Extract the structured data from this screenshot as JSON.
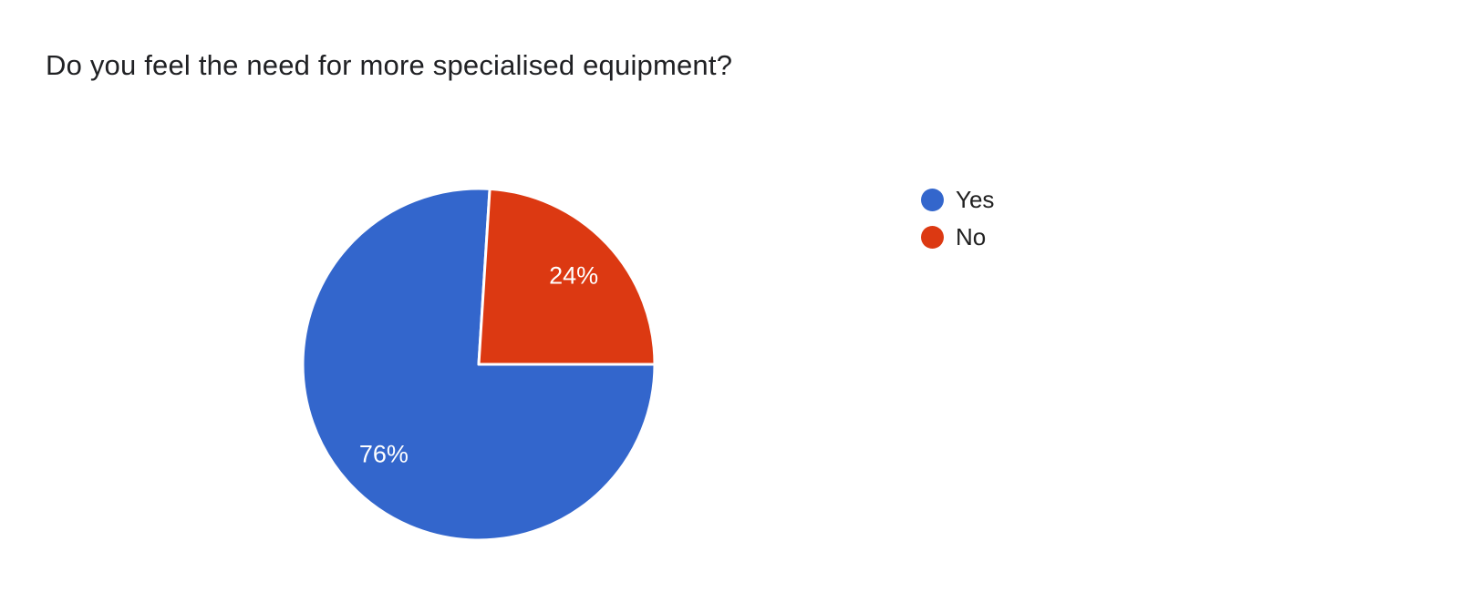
{
  "chart_data": {
    "type": "pie",
    "title": "Do you feel the need for more specialised equipment?",
    "slices": [
      {
        "label": "Yes",
        "value": 76,
        "display": "76%",
        "color": "#3366cc"
      },
      {
        "label": "No",
        "value": 24,
        "display": "24%",
        "color": "#dc3912"
      }
    ],
    "total": 100,
    "start_angle_deg": 90,
    "direction": "clockwise",
    "legend_position": "right",
    "slice_border_color": "#ffffff",
    "label_color": "#ffffff",
    "title_color": "#202124",
    "legend_text_color": "#212121",
    "background_color": "#ffffff"
  }
}
